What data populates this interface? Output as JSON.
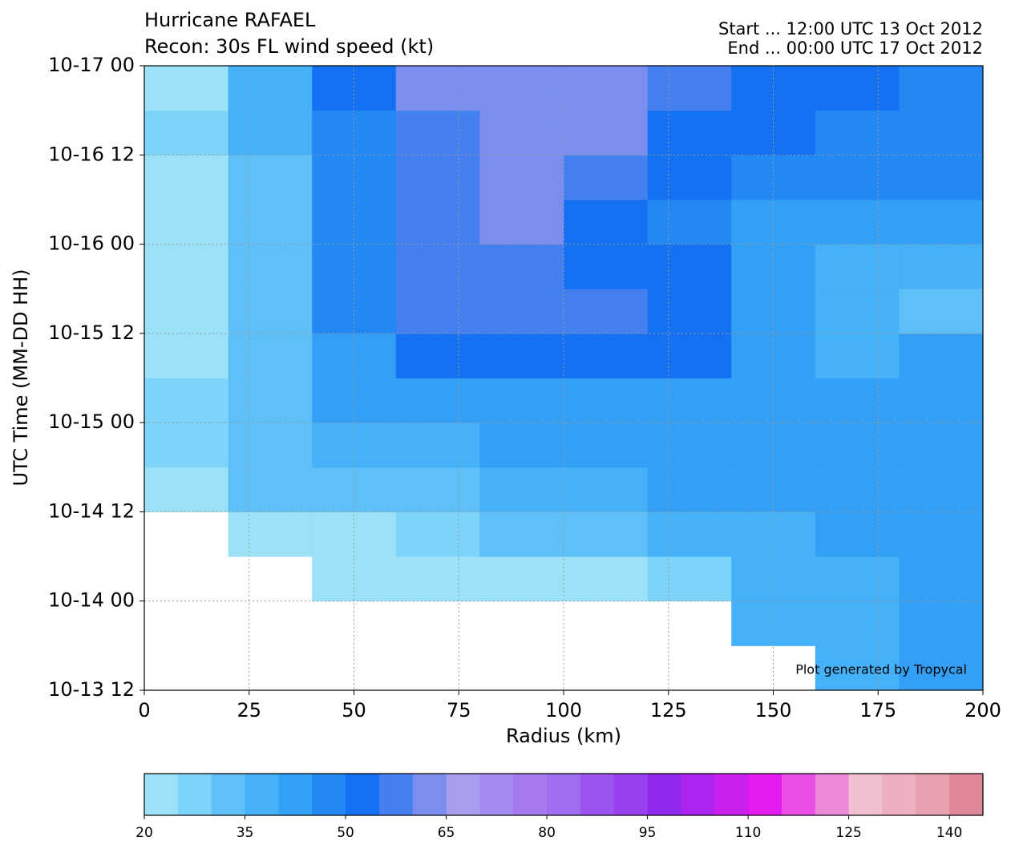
{
  "chart_data": {
    "type": "contour",
    "title": "Hurricane RAFAEL",
    "subtitle": "Recon: 30s FL wind speed (kt)",
    "start_text": "Start ... 12:00 UTC 13 Oct 2012",
    "end_text": "End ... 00:00 UTC 17 Oct 2012",
    "xlabel": "Radius (km)",
    "ylabel": "UTC Time (MM-DD HH)",
    "annotation": "Plot generated by Tropycal",
    "xlim": [
      0,
      200
    ],
    "xticks": [
      0,
      25,
      50,
      75,
      100,
      125,
      150,
      175,
      200
    ],
    "ylim": [
      "2012-10-13T12:00",
      "2012-10-17T00:00"
    ],
    "yticks": [
      {
        "value": "2012-10-13T12:00",
        "label": "10-13 12"
      },
      {
        "value": "2012-10-14T00:00",
        "label": "10-14 00"
      },
      {
        "value": "2012-10-14T12:00",
        "label": "10-14 12"
      },
      {
        "value": "2012-10-15T00:00",
        "label": "10-15 00"
      },
      {
        "value": "2012-10-15T12:00",
        "label": "10-15 12"
      },
      {
        "value": "2012-10-16T00:00",
        "label": "10-16 00"
      },
      {
        "value": "2012-10-16T12:00",
        "label": "10-16 12"
      },
      {
        "value": "2012-10-17T00:00",
        "label": "10-17 00"
      }
    ],
    "grid": true,
    "x": [
      10,
      30,
      50,
      70,
      90,
      110,
      130,
      150,
      170,
      190
    ],
    "y": [
      "2012-10-13T15:00",
      "2012-10-13T21:00",
      "2012-10-14T03:00",
      "2012-10-14T09:00",
      "2012-10-14T15:00",
      "2012-10-14T21:00",
      "2012-10-15T03:00",
      "2012-10-15T09:00",
      "2012-10-15T15:00",
      "2012-10-15T21:00",
      "2012-10-16T03:00",
      "2012-10-16T09:00",
      "2012-10-16T15:00",
      "2012-10-16T21:00"
    ],
    "z": [
      [
        null,
        null,
        null,
        null,
        null,
        null,
        null,
        null,
        37,
        40
      ],
      [
        null,
        null,
        null,
        null,
        null,
        null,
        null,
        35,
        38,
        42
      ],
      [
        null,
        null,
        22,
        23,
        22,
        23,
        28,
        35,
        38,
        42
      ],
      [
        null,
        21,
        24,
        28,
        30,
        33,
        36,
        38,
        40,
        42
      ],
      [
        24,
        30,
        32,
        34,
        36,
        38,
        40,
        40,
        40,
        42
      ],
      [
        26,
        32,
        36,
        38,
        40,
        42,
        44,
        42,
        40,
        42
      ],
      [
        26,
        33,
        40,
        42,
        42,
        42,
        44,
        42,
        40,
        42
      ],
      [
        24,
        32,
        44,
        52,
        53,
        53,
        52,
        42,
        38,
        40
      ],
      [
        24,
        32,
        46,
        57,
        57,
        56,
        53,
        42,
        36,
        33
      ],
      [
        24,
        32,
        47,
        57,
        58,
        54,
        50,
        43,
        38,
        38
      ],
      [
        24,
        33,
        46,
        58,
        60,
        51,
        48,
        44,
        40,
        42
      ],
      [
        24,
        34,
        45,
        57,
        61,
        56,
        50,
        47,
        45,
        45
      ],
      [
        26,
        36,
        47,
        58,
        62,
        60,
        54,
        50,
        48,
        45
      ],
      [
        24,
        38,
        50,
        60,
        63,
        63,
        55,
        52,
        52,
        46
      ]
    ],
    "levels": [
      20,
      25,
      30,
      35,
      40,
      45,
      50,
      55,
      60,
      65,
      70,
      75,
      80,
      85,
      90,
      95,
      100,
      105,
      110,
      115,
      120,
      125,
      130,
      135,
      140,
      145
    ],
    "colors": [
      "#9be1f8",
      "#7dd3f8",
      "#5fc0f8",
      "#45b1f8",
      "#33a0f5",
      "#2288f3",
      "#1472f2",
      "#4580f0",
      "#7b8ef0",
      "#a89ef0",
      "#a58af0",
      "#a57af0",
      "#a06cf0",
      "#9b55ee",
      "#9640ee",
      "#9028ee",
      "#ac24f0",
      "#cc20ee",
      "#e41cf0",
      "#e84ee4",
      "#ea88da",
      "#f0c0d0",
      "#ecb0c0",
      "#e6a0b0",
      "#df8898"
    ],
    "cbar_ticks": [
      20,
      35,
      50,
      65,
      80,
      95,
      110,
      125,
      140
    ]
  }
}
